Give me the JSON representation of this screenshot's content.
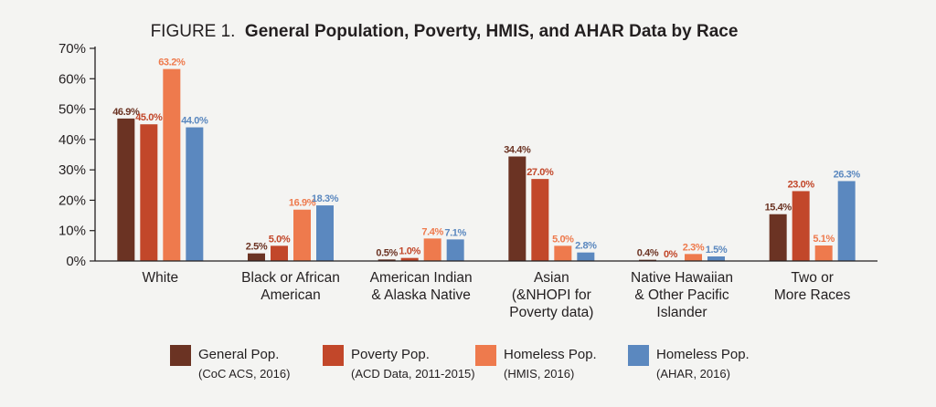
{
  "chart_data": {
    "type": "bar",
    "title_prefix": "FIGURE 1.",
    "title": "General Population, Poverty, HMIS, and AHAR Data by Race",
    "ylim": [
      0,
      70
    ],
    "yticks": [
      0,
      10,
      20,
      30,
      40,
      50,
      60,
      70
    ],
    "ytick_labels": [
      "0%",
      "10%",
      "20%",
      "30%",
      "40%",
      "50%",
      "60%",
      "70%"
    ],
    "grid": false,
    "legend_position": "bottom",
    "categories": [
      [
        "White"
      ],
      [
        "Black or African",
        "American"
      ],
      [
        "American Indian",
        "& Alaska Native"
      ],
      [
        "Asian",
        "(&NHOPI for",
        "Poverty data)"
      ],
      [
        "Native Hawaiian",
        "& Other Pacific",
        "Islander"
      ],
      [
        "Two or",
        "More Races"
      ]
    ],
    "series": [
      {
        "name": "General Pop.",
        "sub": "(CoC ACS, 2016)",
        "color": "#6b3323",
        "values": [
          46.9,
          2.5,
          0.5,
          34.4,
          0.4,
          15.4
        ],
        "labels": [
          "46.9%",
          "2.5%",
          "0.5%",
          "34.4%",
          "0.4%",
          "15.4%"
        ]
      },
      {
        "name": "Poverty Pop.",
        "sub": "(ACD Data, 2011-2015)",
        "color": "#c2472a",
        "values": [
          45.0,
          5.0,
          1.0,
          27.0,
          0.0,
          23.0
        ],
        "labels": [
          "45.0%",
          "5.0%",
          "1.0%",
          "27.0%",
          "0%",
          "23.0%"
        ]
      },
      {
        "name": "Homeless Pop.",
        "sub": "(HMIS, 2016)",
        "color": "#ee7a4d",
        "values": [
          63.2,
          16.9,
          7.4,
          5.0,
          2.3,
          5.1
        ],
        "labels": [
          "63.2%",
          "16.9%",
          "7.4%",
          "5.0%",
          "2.3%",
          "5.1%"
        ]
      },
      {
        "name": "Homeless Pop.",
        "sub": "(AHAR, 2016)",
        "color": "#5b88bf",
        "values": [
          44.0,
          18.3,
          7.1,
          2.8,
          1.5,
          26.3
        ],
        "labels": [
          "44.0%",
          "18.3%",
          "7.1%",
          "2.8%",
          "1.5%",
          "26.3%"
        ]
      }
    ]
  }
}
